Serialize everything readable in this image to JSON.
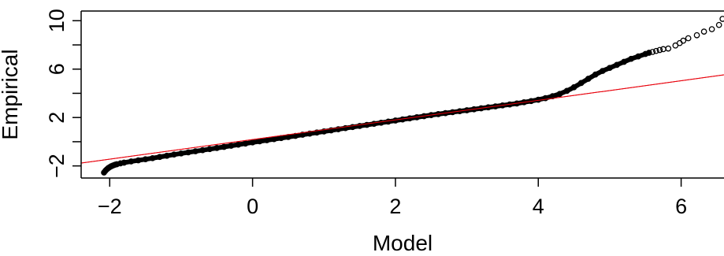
{
  "chart_data": {
    "type": "scatter",
    "title": "",
    "xlabel": "Model",
    "ylabel": "Empirical",
    "xlim": [
      -2.4,
      6.6
    ],
    "ylim": [
      -3.0,
      10.8
    ],
    "x_ticks": [
      -2,
      0,
      2,
      4,
      6
    ],
    "x_tick_labels": [
      "−2",
      "0",
      "2",
      "4",
      "6"
    ],
    "y_ticks": [
      -2,
      0,
      2,
      4,
      6,
      8,
      10
    ],
    "y_tick_labels": [
      "−2",
      "",
      "2",
      "",
      "6",
      "",
      "10"
    ],
    "grid": false,
    "legend": "none",
    "point_color": "#000000",
    "line_color": "#e8000b",
    "reference_line": {
      "intercept": 0.18,
      "slope": 0.81
    },
    "series": [
      {
        "x": [
          -2.08,
          -2.06,
          -2.04,
          -2.02,
          -2.0,
          -1.98,
          -1.96,
          -1.94,
          -1.92,
          -1.9,
          -1.85,
          -1.8,
          -1.7,
          -1.6,
          -1.5,
          -1.4,
          -1.3,
          -1.2,
          -1.1,
          -1.0,
          -0.9,
          -0.8,
          -0.7,
          -0.6,
          -0.5,
          -0.4,
          -0.3,
          -0.2,
          -0.1,
          0.0,
          0.1,
          0.2,
          0.3,
          0.4,
          0.5,
          0.6,
          0.7,
          0.8,
          0.9,
          1.0,
          1.1,
          1.2,
          1.3,
          1.4,
          1.5,
          1.6,
          1.7,
          1.8,
          1.9,
          2.0,
          2.1,
          2.2,
          2.3,
          2.4,
          2.5,
          2.6,
          2.7,
          2.8,
          2.9,
          3.0,
          3.1,
          3.2,
          3.3,
          3.4,
          3.5,
          3.6,
          3.7,
          3.8,
          3.9,
          4.0,
          4.1,
          4.2,
          4.3,
          4.4,
          4.5,
          4.6,
          4.7,
          4.8,
          4.9,
          5.0,
          5.1,
          5.2,
          5.3,
          5.4,
          5.5,
          5.55,
          5.6,
          5.65,
          5.7,
          5.75,
          5.82,
          5.92,
          5.98,
          6.03,
          6.1,
          6.22,
          6.32,
          6.43,
          6.53,
          6.58
        ],
        "y": [
          -2.55,
          -2.4,
          -2.28,
          -2.18,
          -2.1,
          -2.03,
          -1.98,
          -1.93,
          -1.89,
          -1.86,
          -1.79,
          -1.73,
          -1.63,
          -1.54,
          -1.45,
          -1.36,
          -1.26,
          -1.16,
          -1.06,
          -0.97,
          -0.88,
          -0.79,
          -0.7,
          -0.61,
          -0.52,
          -0.43,
          -0.33,
          -0.24,
          -0.15,
          -0.06,
          0.03,
          0.12,
          0.21,
          0.3,
          0.39,
          0.48,
          0.58,
          0.67,
          0.76,
          0.85,
          0.94,
          1.03,
          1.12,
          1.21,
          1.3,
          1.39,
          1.48,
          1.57,
          1.66,
          1.75,
          1.84,
          1.93,
          2.02,
          2.11,
          2.2,
          2.28,
          2.36,
          2.44,
          2.52,
          2.6,
          2.68,
          2.76,
          2.84,
          2.92,
          3.0,
          3.08,
          3.16,
          3.26,
          3.36,
          3.47,
          3.6,
          3.76,
          3.95,
          4.2,
          4.5,
          4.85,
          5.2,
          5.55,
          5.85,
          6.1,
          6.35,
          6.6,
          6.85,
          7.05,
          7.25,
          7.35,
          7.42,
          7.5,
          7.58,
          7.65,
          7.7,
          7.95,
          8.15,
          8.35,
          8.55,
          8.8,
          9.1,
          9.3,
          9.65,
          10.15
        ]
      }
    ]
  }
}
